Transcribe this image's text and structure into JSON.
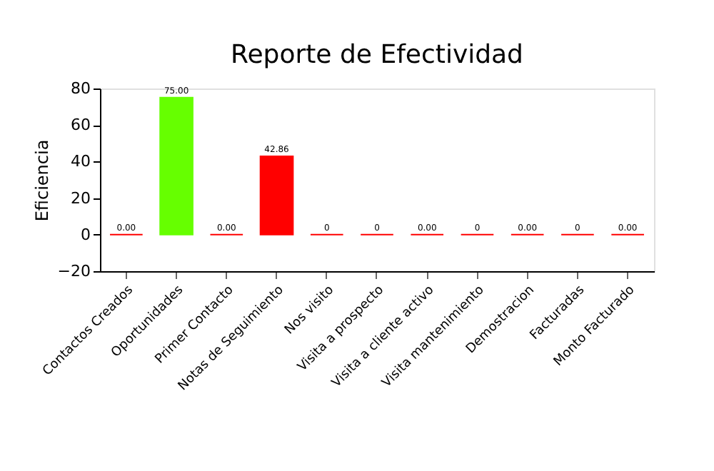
{
  "chart_data": {
    "type": "bar",
    "title": "Reporte de Efectividad",
    "ylabel": "Eficiencia",
    "categories": [
      "Contactos Creados",
      "Oportunidades",
      "Primer Contacto",
      "Notas de Seguimiento",
      "Nos visito",
      "Visita a prospecto",
      "Visita a cliente activo",
      "Visita mantenimiento",
      "Demostracion",
      "Facturadas",
      "Monto Facturado"
    ],
    "values": [
      0,
      75,
      0,
      42.86,
      0,
      0,
      0,
      0,
      0,
      0,
      0
    ],
    "colors": [
      "#ff0000",
      "#66ff00",
      "#ff0000",
      "#ff0000",
      "#ff0000",
      "#ff0000",
      "#ff0000",
      "#ff0000",
      "#ff0000",
      "#ff0000",
      "#ff0000"
    ],
    "value_labels": [
      "0.00",
      "75.00",
      "0.00",
      "42.86",
      "0",
      "0",
      "0.00",
      "0",
      "0.00",
      "0",
      "0.00"
    ],
    "ylim": [
      -20,
      80
    ],
    "yticks": [
      -20,
      0,
      20,
      40,
      60,
      80
    ],
    "grid": false
  }
}
